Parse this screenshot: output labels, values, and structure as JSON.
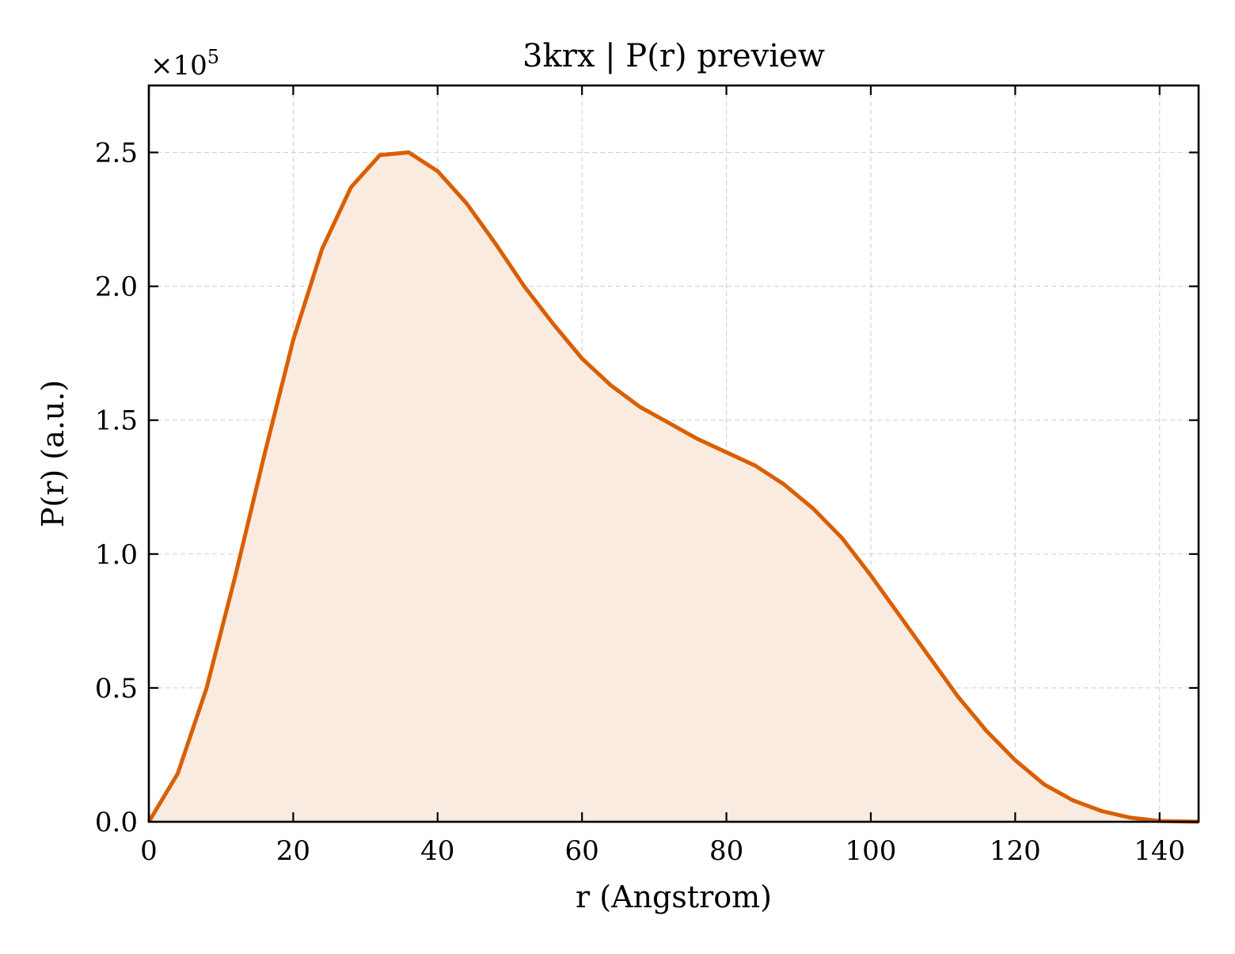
{
  "chart_data": {
    "type": "area",
    "title": "3krx | P(r) preview",
    "xlabel": "r (Angstrom)",
    "ylabel": "P(r) (a.u.)",
    "y_scale_factor_label": "×10",
    "y_scale_exponent": "5",
    "xlim": [
      0,
      145.4
    ],
    "ylim": [
      0,
      2.75
    ],
    "x_ticks": [
      0,
      20,
      40,
      60,
      80,
      100,
      120,
      140
    ],
    "x_tick_labels": [
      "0",
      "20",
      "40",
      "60",
      "80",
      "100",
      "120",
      "140"
    ],
    "y_ticks": [
      0,
      0.5,
      1.0,
      1.5,
      2.0,
      2.5
    ],
    "y_tick_labels": [
      "0.0",
      "0.5",
      "1.0",
      "1.5",
      "2.0",
      "2.5"
    ],
    "grid": true,
    "line_color": "#d95f02",
    "fill_color": "#f9ebe0",
    "series": [
      {
        "x": [
          0,
          4,
          8,
          12,
          16,
          20,
          24,
          28,
          32,
          36,
          40,
          44,
          48,
          52,
          56,
          60,
          64,
          68,
          72,
          76,
          80,
          84,
          88,
          92,
          96,
          100,
          104,
          108,
          112,
          116,
          120,
          124,
          128,
          132,
          136,
          140,
          145.4
        ],
        "y": [
          0.0,
          0.18,
          0.5,
          0.92,
          1.37,
          1.8,
          2.14,
          2.37,
          2.49,
          2.5,
          2.43,
          2.31,
          2.16,
          2.0,
          1.86,
          1.73,
          1.63,
          1.55,
          1.49,
          1.43,
          1.38,
          1.33,
          1.26,
          1.17,
          1.06,
          0.92,
          0.77,
          0.62,
          0.47,
          0.34,
          0.23,
          0.14,
          0.08,
          0.04,
          0.015,
          0.003,
          0.0
        ]
      }
    ]
  }
}
